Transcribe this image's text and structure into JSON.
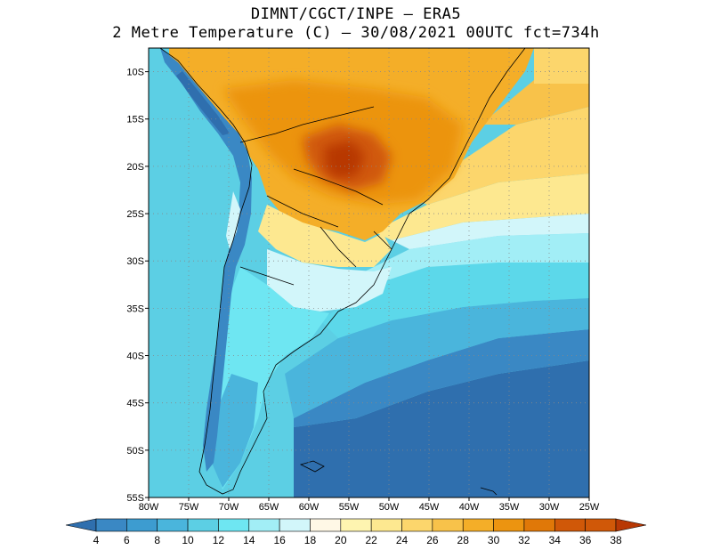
{
  "title": {
    "line1": "DIMNT/CGCT/INPE –  ERA5",
    "line2": "2 Metre Temperature (C) –  30/08/2021 00UTC fct=734h"
  },
  "map": {
    "lon_range": [
      -80,
      -25
    ],
    "lat_range": [
      -55,
      -7.5
    ],
    "gridlines": "dotted",
    "lon_labels": [
      "80W",
      "75W",
      "70W",
      "65W",
      "60W",
      "55W",
      "50W",
      "45W",
      "40W",
      "35W",
      "30W",
      "25W"
    ],
    "lat_labels": [
      "10S",
      "15S",
      "20S",
      "25S",
      "30S",
      "35S",
      "40S",
      "45S",
      "50S",
      "55S"
    ],
    "regions": [
      {
        "name": "pacific-ocean",
        "value_c": 12,
        "color": "#5ccfe4"
      },
      {
        "name": "andes-cold-strip",
        "value_c": 6,
        "color": "#3a88c4"
      },
      {
        "name": "amazon-interior",
        "value_c": 30,
        "color": "#f0a818"
      },
      {
        "name": "central-brazil-hot-core",
        "value_c": 36,
        "color": "#c85808"
      },
      {
        "name": "south-atlantic-subtropical",
        "value_c": 24,
        "color": "#fde890"
      },
      {
        "name": "south-atlantic-mid",
        "value_c": 14,
        "color": "#5cd8ea"
      },
      {
        "name": "south-atlantic-high-lat",
        "value_c": 6,
        "color": "#2f6fae"
      }
    ]
  },
  "colorbar": {
    "labels": [
      "4",
      "6",
      "8",
      "10",
      "12",
      "14",
      "16",
      "18",
      "20",
      "22",
      "24",
      "26",
      "28",
      "30",
      "32",
      "34",
      "36",
      "38"
    ],
    "colors": [
      "#2f6fae",
      "#3a88c4",
      "#3d9cd0",
      "#4ab5dc",
      "#5ccfe4",
      "#6ee6f2",
      "#a2eef6",
      "#d2f6fa",
      "#fff8e6",
      "#fef4b0",
      "#fde890",
      "#fcd66c",
      "#f8c24a",
      "#f4ae28",
      "#ec9410",
      "#e07808",
      "#d05808",
      "#b83804"
    ]
  }
}
